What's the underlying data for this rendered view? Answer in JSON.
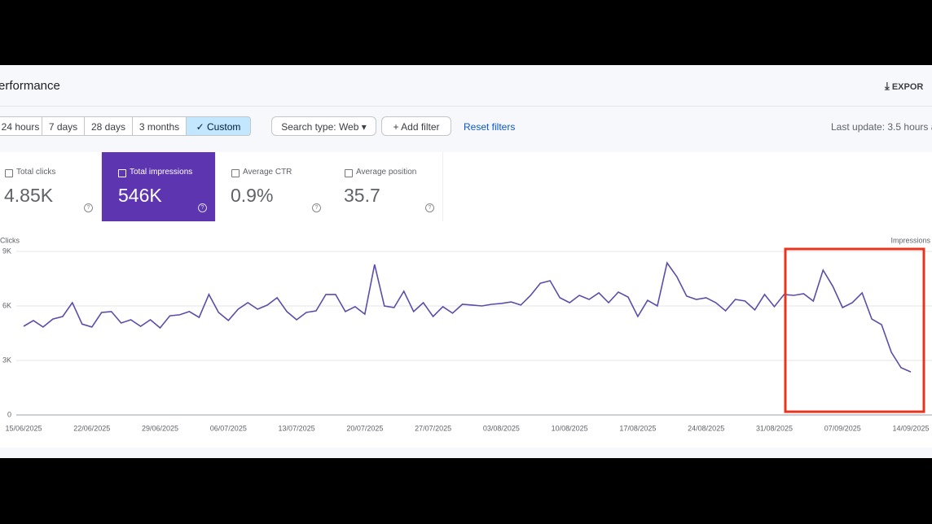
{
  "header": {
    "title": "erformance",
    "export": "EXPOR"
  },
  "filters": {
    "ranges": [
      "24 hours",
      "7 days",
      "28 days",
      "3 months",
      "Custom"
    ],
    "search_type": "Search type: Web",
    "add_filter": "Add filter",
    "reset": "Reset filters",
    "last_update": "Last update: 3.5 hours a"
  },
  "metrics": [
    {
      "label": "Total clicks",
      "value": "4.85K"
    },
    {
      "label": "Total impressions",
      "value": "546K"
    },
    {
      "label": "Average CTR",
      "value": "0.9%"
    },
    {
      "label": "Average position",
      "value": "35.7"
    }
  ],
  "chart_data": {
    "type": "line",
    "y_label": "Clicks",
    "y2_label": "Impressions",
    "color": "#5b4ea8",
    "grid": true,
    "categories": [
      "15/06/2025",
      null,
      null,
      null,
      null,
      null,
      null,
      "22/06/2025",
      null,
      null,
      null,
      null,
      null,
      null,
      "29/06/2025",
      null,
      null,
      null,
      null,
      null,
      null,
      "06/07/2025",
      null,
      null,
      null,
      null,
      null,
      null,
      "13/07/2025",
      null,
      null,
      null,
      null,
      null,
      null,
      "20/07/2025",
      null,
      null,
      null,
      null,
      null,
      null,
      "27/07/2025",
      null,
      null,
      null,
      null,
      null,
      null,
      "03/08/2025",
      null,
      null,
      null,
      null,
      null,
      null,
      "10/08/2025",
      null,
      null,
      null,
      null,
      null,
      null,
      "17/08/2025",
      null,
      null,
      null,
      null,
      null,
      null,
      "24/08/2025",
      null,
      null,
      null,
      null,
      null,
      null,
      "31/08/2025",
      null,
      null,
      null,
      null,
      null,
      null,
      "07/09/2025",
      null,
      null,
      null,
      null,
      null,
      null,
      "14/09/2025"
    ],
    "values": [
      4880,
      5200,
      4840,
      5280,
      5420,
      6180,
      5000,
      4840,
      5640,
      5690,
      5060,
      5240,
      4880,
      5240,
      4790,
      5460,
      5510,
      5690,
      5370,
      6630,
      5640,
      5200,
      5820,
      6180,
      5820,
      6050,
      6450,
      5690,
      5240,
      5640,
      5730,
      6630,
      6630,
      5690,
      5960,
      5550,
      8280,
      6000,
      5910,
      6810,
      5690,
      6180,
      5420,
      5960,
      5600,
      6090,
      6050,
      6000,
      6090,
      6140,
      6220,
      6050,
      6580,
      7250,
      7390,
      6450,
      6180,
      6580,
      6360,
      6720,
      6180,
      6760,
      6490,
      5420,
      6310,
      6000,
      8370,
      7610,
      6540,
      6360,
      6450,
      6180,
      5730,
      6360,
      6270,
      5780,
      6630,
      5960,
      6630,
      6580,
      6670,
      6270,
      7970,
      7080,
      5910,
      6180,
      6720,
      5280,
      4970,
      3450,
      2600,
      2370
    ],
    "ylim": [
      0,
      9000
    ],
    "yticks": [
      0,
      {
        "value": 3000,
        "label": "3K"
      },
      {
        "value": 6000,
        "label": "6K"
      },
      {
        "value": 9000,
        "label": "9K"
      }
    ]
  }
}
